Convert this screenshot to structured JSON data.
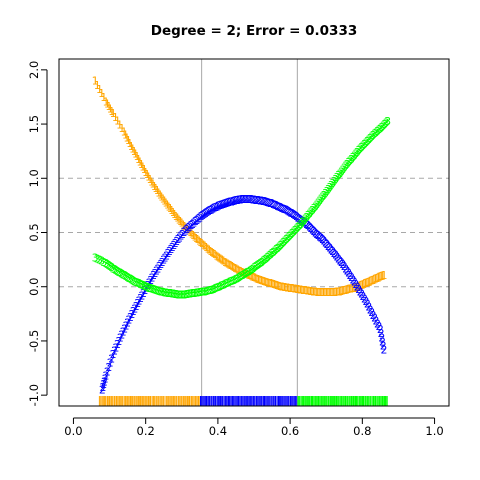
{
  "chart_data": {
    "type": "scatter",
    "title": "Degree = 2; Error = 0.0333",
    "xlabel": "",
    "ylabel": "",
    "xlim": [
      -0.04,
      1.04
    ],
    "ylim": [
      -1.1,
      2.1
    ],
    "x_ticks": [
      0.0,
      0.2,
      0.4,
      0.6,
      0.8,
      1.0
    ],
    "x_tick_labels": [
      "0.0",
      "0.2",
      "0.4",
      "0.6",
      "0.8",
      "1.0"
    ],
    "y_ticks": [
      -1.0,
      -0.5,
      0.0,
      0.5,
      1.0,
      1.5,
      2.0
    ],
    "y_tick_labels": [
      "-1.0",
      "-0.5",
      "0.0",
      "0.5",
      "1.0",
      "1.5",
      "2.0"
    ],
    "hlines": [
      0.0,
      0.5,
      1.0
    ],
    "vlines": [
      0.355,
      0.62
    ],
    "grid": false,
    "legend": "none",
    "series": [
      {
        "marker": "1",
        "color": "#FFA500",
        "x": [
          0.06,
          0.09,
          0.11,
          0.14,
          0.16,
          0.18,
          0.2,
          0.22,
          0.24,
          0.26,
          0.28,
          0.3,
          0.32,
          0.34,
          0.36,
          0.38,
          0.4,
          0.42,
          0.44,
          0.46,
          0.48,
          0.5,
          0.52,
          0.54,
          0.56,
          0.58,
          0.6,
          0.62,
          0.64,
          0.66,
          0.68,
          0.7,
          0.72,
          0.74,
          0.76,
          0.78,
          0.8,
          0.82,
          0.84,
          0.86
        ],
        "y": [
          1.9,
          1.71,
          1.6,
          1.43,
          1.3,
          1.18,
          1.06,
          0.95,
          0.85,
          0.76,
          0.67,
          0.59,
          0.52,
          0.45,
          0.39,
          0.33,
          0.28,
          0.23,
          0.19,
          0.15,
          0.12,
          0.09,
          0.06,
          0.04,
          0.02,
          0.0,
          -0.01,
          -0.02,
          -0.03,
          -0.04,
          -0.05,
          -0.05,
          -0.05,
          -0.04,
          -0.02,
          -0.01,
          0.02,
          0.05,
          0.08,
          0.11
        ]
      },
      {
        "marker": "2",
        "color": "#0000FF",
        "x": [
          0.08,
          0.09,
          0.11,
          0.13,
          0.15,
          0.17,
          0.19,
          0.21,
          0.23,
          0.25,
          0.27,
          0.29,
          0.31,
          0.33,
          0.35,
          0.37,
          0.39,
          0.41,
          0.43,
          0.45,
          0.47,
          0.49,
          0.51,
          0.53,
          0.55,
          0.57,
          0.59,
          0.61,
          0.63,
          0.65,
          0.67,
          0.69,
          0.71,
          0.73,
          0.75,
          0.77,
          0.79,
          0.81,
          0.83,
          0.85,
          0.86
        ],
        "y": [
          -0.95,
          -0.82,
          -0.62,
          -0.47,
          -0.33,
          -0.2,
          -0.08,
          0.04,
          0.15,
          0.25,
          0.35,
          0.44,
          0.52,
          0.58,
          0.64,
          0.69,
          0.73,
          0.76,
          0.78,
          0.8,
          0.81,
          0.81,
          0.8,
          0.79,
          0.77,
          0.74,
          0.71,
          0.67,
          0.62,
          0.57,
          0.5,
          0.44,
          0.36,
          0.28,
          0.19,
          0.09,
          -0.02,
          -0.13,
          -0.26,
          -0.39,
          -0.58
        ]
      },
      {
        "marker": "3",
        "color": "#00FF00",
        "x": [
          0.06,
          0.09,
          0.11,
          0.13,
          0.15,
          0.17,
          0.19,
          0.21,
          0.23,
          0.25,
          0.27,
          0.29,
          0.31,
          0.33,
          0.35,
          0.37,
          0.39,
          0.41,
          0.43,
          0.45,
          0.47,
          0.49,
          0.51,
          0.53,
          0.55,
          0.57,
          0.59,
          0.61,
          0.63,
          0.65,
          0.67,
          0.69,
          0.71,
          0.73,
          0.75,
          0.77,
          0.79,
          0.81,
          0.83,
          0.85,
          0.87
        ],
        "y": [
          0.27,
          0.22,
          0.17,
          0.13,
          0.09,
          0.05,
          0.02,
          -0.01,
          -0.03,
          -0.05,
          -0.06,
          -0.07,
          -0.07,
          -0.06,
          -0.05,
          -0.04,
          -0.02,
          0.01,
          0.04,
          0.07,
          0.11,
          0.15,
          0.2,
          0.25,
          0.31,
          0.37,
          0.44,
          0.51,
          0.58,
          0.66,
          0.74,
          0.83,
          0.92,
          1.01,
          1.1,
          1.18,
          1.26,
          1.33,
          1.4,
          1.46,
          1.53
        ]
      }
    ],
    "rug": [
      {
        "color": "#FFA500",
        "range": [
          0.07,
          0.35
        ]
      },
      {
        "color": "#0000FF",
        "range": [
          0.35,
          0.62
        ]
      },
      {
        "color": "#00FF00",
        "range": [
          0.62,
          0.87
        ]
      }
    ]
  }
}
